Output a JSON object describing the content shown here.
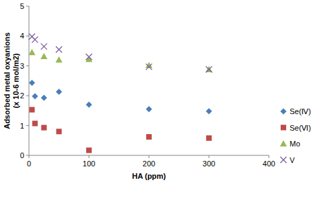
{
  "chart_data": {
    "type": "scatter",
    "x_label": "HA (ppm)",
    "y_label": "Adsorbed metal oxyanions (x 10-6 mol/m2)",
    "x": [
      5,
      10,
      25,
      50,
      100,
      200,
      300
    ],
    "series": [
      {
        "name": "Se(Ⅳ)",
        "color": "#4a7ebb",
        "marker": "diamond",
        "values": [
          2.43,
          1.98,
          1.93,
          2.13,
          1.7,
          1.55,
          1.48
        ]
      },
      {
        "name": "Se(Ⅵ)",
        "color": "#be4b48",
        "marker": "square",
        "values": [
          1.53,
          1.07,
          0.93,
          0.8,
          0.17,
          0.62,
          0.58
        ]
      },
      {
        "name": "Mo",
        "color": "#98b954",
        "marker": "triangle",
        "values": [
          3.45,
          null,
          3.32,
          3.2,
          3.22,
          3.02,
          2.88
        ]
      },
      {
        "name": "V",
        "color": "#7d60a0",
        "marker": "x",
        "values": [
          3.98,
          3.88,
          3.65,
          3.55,
          3.3,
          2.97,
          2.88
        ]
      }
    ],
    "xlim": [
      0,
      400
    ],
    "xticks": [
      0,
      100,
      200,
      300,
      400
    ],
    "ylim": [
      0,
      5
    ],
    "yticks": [
      0,
      1,
      2,
      3,
      4,
      5
    ],
    "grid": false,
    "legend": "right"
  }
}
